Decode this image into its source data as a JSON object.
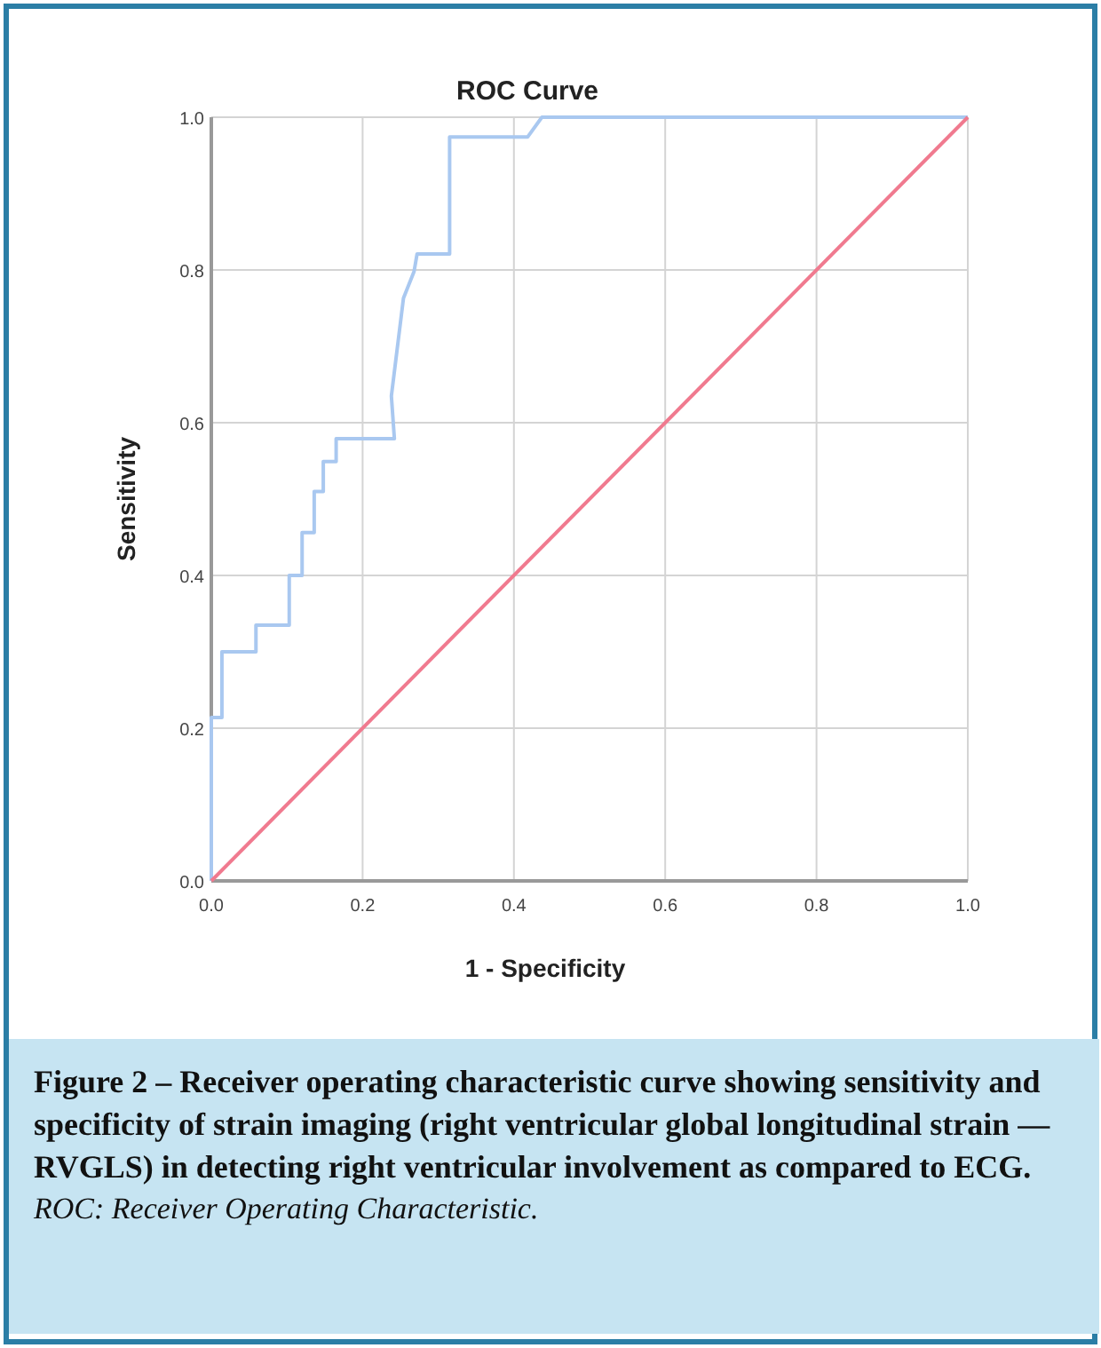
{
  "chart_data": {
    "type": "line",
    "title": "ROC Curve",
    "xlabel": "1 - Specificity",
    "ylabel": "Sensitivity",
    "xlim": [
      0,
      1
    ],
    "ylim": [
      0,
      1
    ],
    "xticks": [
      {
        "value": 0,
        "label": "0.0"
      },
      {
        "value": 0.2,
        "label": "0.2"
      },
      {
        "value": 0.4,
        "label": "0.4"
      },
      {
        "value": 0.6,
        "label": "0.6"
      },
      {
        "value": 0.8,
        "label": "0.8"
      },
      {
        "value": 1,
        "label": "1.0"
      }
    ],
    "yticks": [
      {
        "value": 0,
        "label": "0.0"
      },
      {
        "value": 0.2,
        "label": "0.2"
      },
      {
        "value": 0.4,
        "label": "0.4"
      },
      {
        "value": 0.6,
        "label": "0.6"
      },
      {
        "value": 0.8,
        "label": "0.8"
      },
      {
        "value": 1,
        "label": "1.0"
      }
    ],
    "grid": true,
    "series": [
      {
        "color": "#a9c8f0",
        "x": [
          0,
          0,
          0.014,
          0.014,
          0.059,
          0.059,
          0.103,
          0.103,
          0.12,
          0.12,
          0.136,
          0.136,
          0.148,
          0.148,
          0.165,
          0.165,
          0.242,
          0.238,
          0.254,
          0.268,
          0.272,
          0.315,
          0.315,
          0.418,
          0.437,
          1
        ],
        "values": [
          0,
          0.214,
          0.214,
          0.3,
          0.3,
          0.335,
          0.335,
          0.4,
          0.4,
          0.456,
          0.456,
          0.51,
          0.51,
          0.549,
          0.549,
          0.579,
          0.579,
          0.635,
          0.763,
          0.798,
          0.821,
          0.821,
          0.974,
          0.974,
          1,
          1
        ]
      },
      {
        "color": "#f07a8f",
        "x": [
          0,
          1
        ],
        "values": [
          0,
          1
        ]
      }
    ],
    "annotations": [
      "Figure 2 – Receiver operating characteristic curve showing sensitivity and specificity of strain imaging (right ventricular global longitudinal strain — RVGLS) in detecting right ventricular involvement as compared to ECG.",
      "ROC: Receiver Operating Characteristic."
    ]
  }
}
